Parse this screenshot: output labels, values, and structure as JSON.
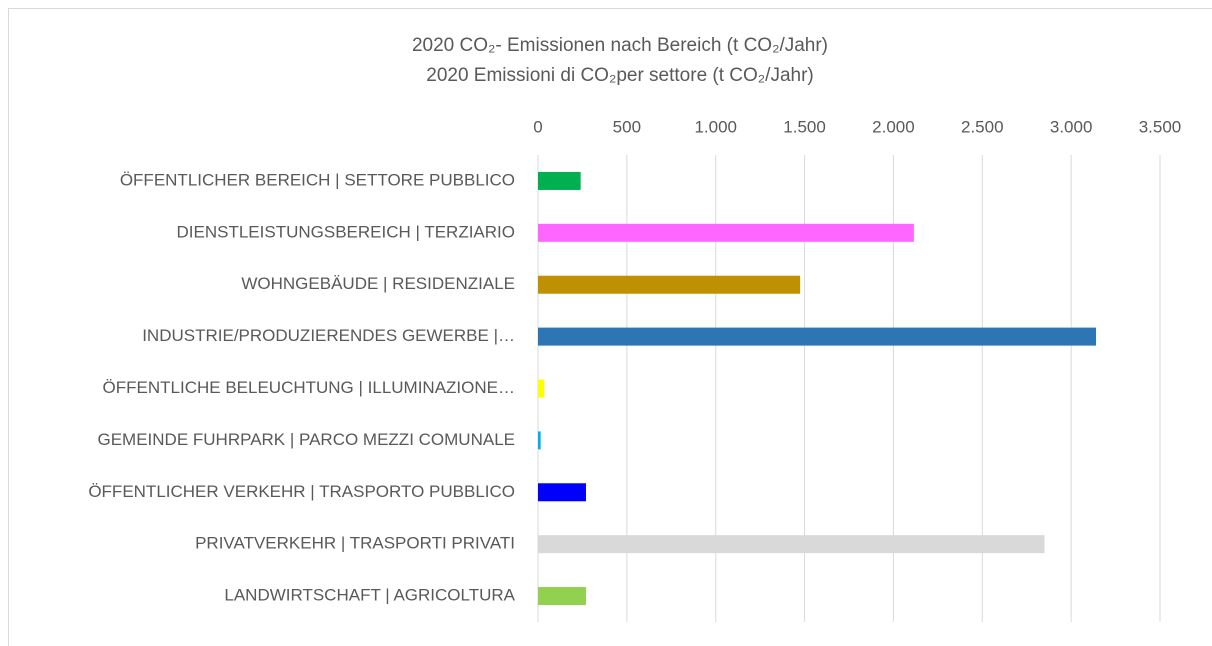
{
  "chart_data": {
    "type": "bar",
    "orientation": "horizontal",
    "title": "2020 CO₂- Emissionen nach Bereich  (t CO₂/Jahr)",
    "subtitle": "2020 Emissioni di CO₂per settore (t CO₂/Jahr)",
    "categories": [
      "ÖFFENTLICHER BEREICH | SETTORE PUBBLICO",
      "DIENSTLEISTUNGSBEREICH | TERZIARIO",
      "WOHNGEBÄUDE | RESIDENZIALE",
      "INDUSTRIE/PRODUZIERENDES GEWERBE |…",
      "ÖFFENTLICHE BELEUCHTUNG | ILLUMINAZIONE…",
      "GEMEINDE FUHRPARK | PARCO MEZZI COMUNALE",
      "ÖFFENTLICHER VERKEHR | TRASPORTO PUBBLICO",
      "PRIVATVERKEHR | TRASPORTI PRIVATI",
      "LANDWIRTSCHAFT | AGRICOLTURA"
    ],
    "values": [
      240,
      2115,
      1475,
      3140,
      35,
      15,
      270,
      2850,
      270
    ],
    "colors": [
      "#00b050",
      "#ff66ff",
      "#bf9000",
      "#2e75b6",
      "#ffff00",
      "#00b0f0",
      "#0000ff",
      "#d9d9d9",
      "#92d050"
    ],
    "xlim": [
      0,
      3500
    ],
    "xticks": [
      0,
      500,
      {
        "value": 1000,
        "label": "1.000"
      },
      {
        "value": 1500,
        "label": "1.500"
      },
      {
        "value": 2000,
        "label": "2.000"
      },
      {
        "value": 2500,
        "label": "2.500"
      },
      {
        "value": 3000,
        "label": "3.000"
      },
      {
        "value": 3500,
        "label": "3.500"
      }
    ],
    "grid": true
  }
}
